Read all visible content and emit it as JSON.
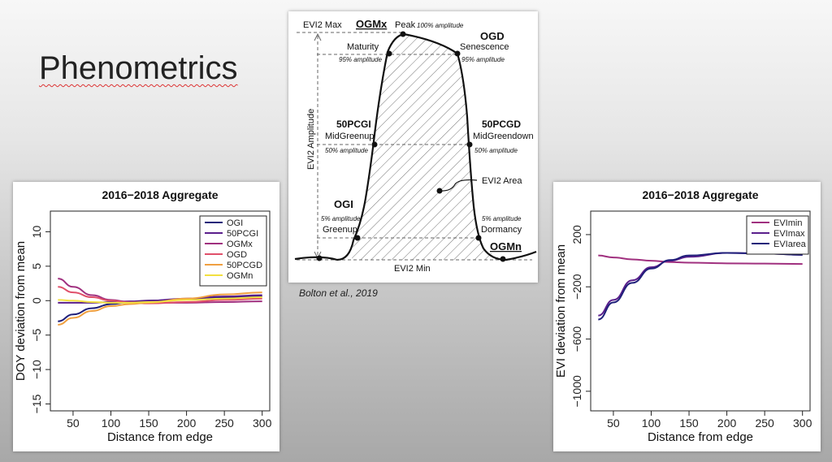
{
  "slide": {
    "title": "Phenometrics"
  },
  "citation": "Bolton et al., 2019",
  "diagram": {
    "evi2_max": "EVI2 Max",
    "evi2_min": "EVI2 Min",
    "amplitude": "EVI2 Amplitude",
    "evi2_area": "EVI2 Area",
    "points": [
      {
        "code": "OGMx",
        "name": "",
        "pct": ""
      },
      {
        "code": "",
        "name": "Peak",
        "pct": "100% amplitude"
      },
      {
        "code": "",
        "name": "Maturity",
        "pct": "95% amplitude"
      },
      {
        "code": "OGD",
        "name": "Senescence",
        "pct": "95% amplitude"
      },
      {
        "code": "50PCGI",
        "name": "MidGreenup",
        "pct": "50% amplitude"
      },
      {
        "code": "50PCGD",
        "name": "MidGreendown",
        "pct": "50% amplitude"
      },
      {
        "code": "OGI",
        "name": "Greenup",
        "pct": "5% amplitude"
      },
      {
        "code": "",
        "name": "Dormancy",
        "pct": "5% amplitude"
      },
      {
        "code": "OGMn",
        "name": "",
        "pct": ""
      }
    ]
  },
  "chart_data": [
    {
      "type": "line",
      "title": "2016−2018 Aggregate",
      "xlabel": "Distance from edge",
      "ylabel": "DOY deviation from mean",
      "xlim": [
        20,
        310
      ],
      "ylim": [
        -16,
        13
      ],
      "xticks": [
        50,
        100,
        150,
        200,
        250,
        300
      ],
      "yticks": [
        -15,
        -10,
        -5,
        0,
        5,
        10
      ],
      "grid": false,
      "legend": "top-right",
      "series": [
        {
          "name": "OGI",
          "color": "#1f1f7a",
          "x": [
            30,
            50,
            75,
            100,
            125,
            150,
            200,
            250,
            300
          ],
          "values": [
            -3.0,
            -2.0,
            -1.1,
            -0.5,
            -0.2,
            0.0,
            0.2,
            0.4,
            0.6
          ]
        },
        {
          "name": "50PCGI",
          "color": "#5a1f8c",
          "x": [
            30,
            50,
            75,
            100,
            125,
            150,
            200,
            250,
            300
          ],
          "values": [
            -0.3,
            -0.3,
            -0.3,
            -0.2,
            -0.1,
            0.0,
            0.3,
            0.6,
            0.8
          ]
        },
        {
          "name": "OGMx",
          "color": "#a0307f",
          "x": [
            30,
            50,
            75,
            100,
            125,
            150,
            200,
            250,
            300
          ],
          "values": [
            3.2,
            2.0,
            0.8,
            0.1,
            -0.2,
            -0.3,
            -0.3,
            -0.2,
            -0.1
          ]
        },
        {
          "name": "OGD",
          "color": "#e0506a",
          "x": [
            30,
            50,
            75,
            100,
            125,
            150,
            200,
            250,
            300
          ],
          "values": [
            2.0,
            1.2,
            0.5,
            0.0,
            -0.3,
            -0.4,
            -0.2,
            0.1,
            0.3
          ]
        },
        {
          "name": "50PCGD",
          "color": "#f0a040",
          "x": [
            30,
            50,
            75,
            100,
            125,
            150,
            200,
            250,
            300
          ],
          "values": [
            -3.5,
            -2.5,
            -1.5,
            -0.8,
            -0.5,
            -0.3,
            0.3,
            0.9,
            1.2
          ]
        },
        {
          "name": "OGMn",
          "color": "#f2e040",
          "x": [
            30,
            50,
            75,
            100,
            125,
            150,
            200,
            250,
            300
          ],
          "values": [
            0.1,
            0.0,
            -0.2,
            -0.3,
            -0.3,
            -0.2,
            0.1,
            0.3,
            0.5
          ]
        }
      ]
    },
    {
      "type": "line",
      "title": "2016−2018 Aggregate",
      "xlabel": "Distance from edge",
      "ylabel": "EVI deviation from mean",
      "xlim": [
        20,
        310
      ],
      "ylim": [
        -1150,
        380
      ],
      "xticks": [
        50,
        100,
        150,
        200,
        250,
        300
      ],
      "yticks": [
        -1000,
        -600,
        -200,
        200
      ],
      "grid": false,
      "legend": "top-right",
      "series": [
        {
          "name": "EVImin",
          "color": "#a0307f",
          "x": [
            30,
            50,
            75,
            100,
            125,
            150,
            200,
            250,
            300
          ],
          "values": [
            40,
            25,
            10,
            0,
            -10,
            -15,
            -20,
            -22,
            -25
          ]
        },
        {
          "name": "EVImax",
          "color": "#5a1f8c",
          "x": [
            30,
            50,
            75,
            100,
            125,
            150,
            200,
            250,
            300
          ],
          "values": [
            -420,
            -300,
            -150,
            -50,
            0,
            30,
            60,
            55,
            45
          ]
        },
        {
          "name": "EVIarea",
          "color": "#1f1f7a",
          "x": [
            30,
            50,
            75,
            100,
            125,
            150,
            200,
            250,
            300
          ],
          "values": [
            -450,
            -320,
            -170,
            -60,
            5,
            40,
            60,
            55,
            45
          ]
        }
      ]
    }
  ]
}
